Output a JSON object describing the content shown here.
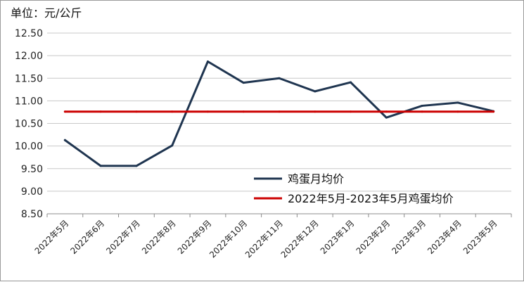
{
  "chart_data": {
    "type": "line",
    "unit_label": "单位：元/公斤",
    "categories": [
      "2022年5月",
      "2022年6月",
      "2022年7月",
      "2022年8月",
      "2022年9月",
      "2022年10月",
      "2022年11月",
      "2022年12月",
      "2023年1月",
      "2023年2月",
      "2023年3月",
      "2023年4月",
      "2023年5月"
    ],
    "ylim": [
      8.5,
      12.5
    ],
    "yticks": [
      "8.50",
      "9.00",
      "9.50",
      "10.00",
      "10.50",
      "11.00",
      "11.50",
      "12.00",
      "12.50"
    ],
    "grid": true,
    "legend_position": "lower-right",
    "series": [
      {
        "name": "鸡蛋月均价",
        "color": "#1f3550",
        "values": [
          10.13,
          9.56,
          9.56,
          10.01,
          11.87,
          11.4,
          11.5,
          11.21,
          11.41,
          10.63,
          10.89,
          10.96,
          10.77
        ]
      },
      {
        "name": "2022年5月-2023年5月鸡蛋均价",
        "color": "#cc0000",
        "values": [
          10.76,
          10.76,
          10.76,
          10.76,
          10.76,
          10.76,
          10.76,
          10.76,
          10.76,
          10.76,
          10.76,
          10.76,
          10.76
        ]
      }
    ]
  }
}
